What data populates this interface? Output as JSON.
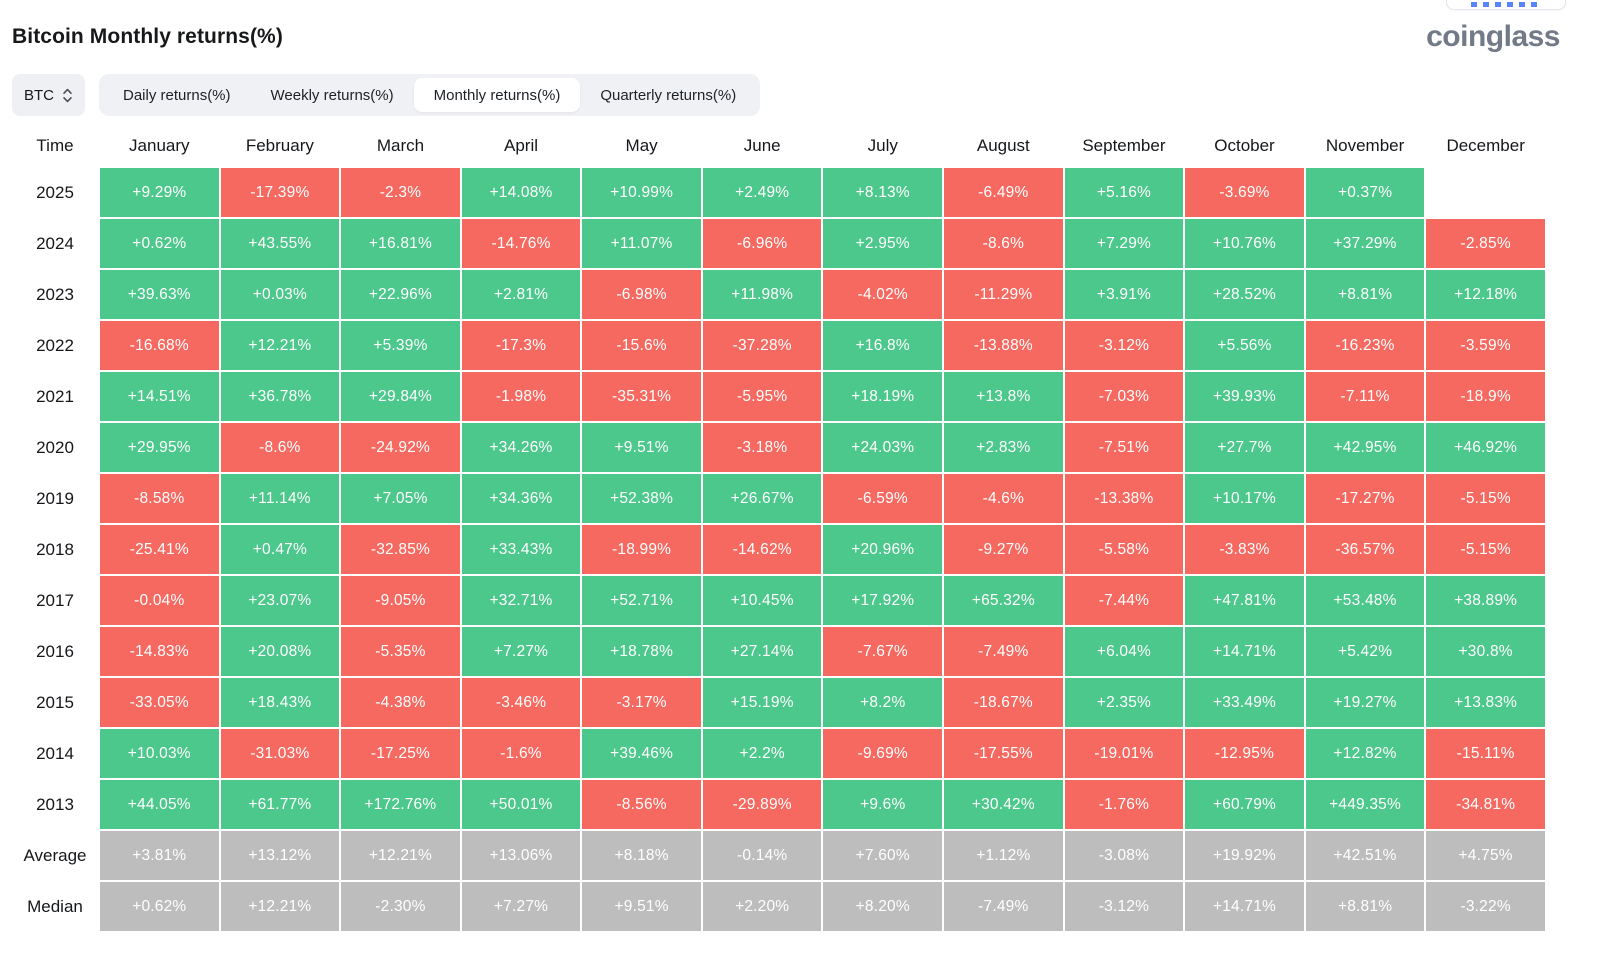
{
  "header": {
    "title": "Bitcoin Monthly returns(%)",
    "logo": "coinglass"
  },
  "controls": {
    "symbol_selector": {
      "value": "BTC",
      "icon": "updown-chevron-icon"
    },
    "tabs": [
      {
        "label": "Daily returns(%)",
        "active": false
      },
      {
        "label": "Weekly returns(%)",
        "active": false
      },
      {
        "label": "Monthly returns(%)",
        "active": true
      },
      {
        "label": "Quarterly returns(%)",
        "active": false
      }
    ]
  },
  "colors": {
    "positive": "#4dc88c",
    "negative": "#f66961",
    "neutral": "#bdbdbd"
  },
  "table": {
    "columns": [
      "Time",
      "January",
      "February",
      "March",
      "April",
      "May",
      "June",
      "July",
      "August",
      "September",
      "October",
      "November",
      "December"
    ],
    "rows": [
      {
        "label": "2025",
        "type": "year",
        "values": [
          "+9.29%",
          "-17.39%",
          "-2.3%",
          "+14.08%",
          "+10.99%",
          "+2.49%",
          "+8.13%",
          "-6.49%",
          "+5.16%",
          "-3.69%",
          "+0.37%",
          null
        ]
      },
      {
        "label": "2024",
        "type": "year",
        "values": [
          "+0.62%",
          "+43.55%",
          "+16.81%",
          "-14.76%",
          "+11.07%",
          "-6.96%",
          "+2.95%",
          "-8.6%",
          "+7.29%",
          "+10.76%",
          "+37.29%",
          "-2.85%"
        ]
      },
      {
        "label": "2023",
        "type": "year",
        "values": [
          "+39.63%",
          "+0.03%",
          "+22.96%",
          "+2.81%",
          "-6.98%",
          "+11.98%",
          "-4.02%",
          "-11.29%",
          "+3.91%",
          "+28.52%",
          "+8.81%",
          "+12.18%"
        ]
      },
      {
        "label": "2022",
        "type": "year",
        "values": [
          "-16.68%",
          "+12.21%",
          "+5.39%",
          "-17.3%",
          "-15.6%",
          "-37.28%",
          "+16.8%",
          "-13.88%",
          "-3.12%",
          "+5.56%",
          "-16.23%",
          "-3.59%"
        ]
      },
      {
        "label": "2021",
        "type": "year",
        "values": [
          "+14.51%",
          "+36.78%",
          "+29.84%",
          "-1.98%",
          "-35.31%",
          "-5.95%",
          "+18.19%",
          "+13.8%",
          "-7.03%",
          "+39.93%",
          "-7.11%",
          "-18.9%"
        ]
      },
      {
        "label": "2020",
        "type": "year",
        "values": [
          "+29.95%",
          "-8.6%",
          "-24.92%",
          "+34.26%",
          "+9.51%",
          "-3.18%",
          "+24.03%",
          "+2.83%",
          "-7.51%",
          "+27.7%",
          "+42.95%",
          "+46.92%"
        ]
      },
      {
        "label": "2019",
        "type": "year",
        "values": [
          "-8.58%",
          "+11.14%",
          "+7.05%",
          "+34.36%",
          "+52.38%",
          "+26.67%",
          "-6.59%",
          "-4.6%",
          "-13.38%",
          "+10.17%",
          "-17.27%",
          "-5.15%"
        ]
      },
      {
        "label": "2018",
        "type": "year",
        "values": [
          "-25.41%",
          "+0.47%",
          "-32.85%",
          "+33.43%",
          "-18.99%",
          "-14.62%",
          "+20.96%",
          "-9.27%",
          "-5.58%",
          "-3.83%",
          "-36.57%",
          "-5.15%"
        ]
      },
      {
        "label": "2017",
        "type": "year",
        "values": [
          "-0.04%",
          "+23.07%",
          "-9.05%",
          "+32.71%",
          "+52.71%",
          "+10.45%",
          "+17.92%",
          "+65.32%",
          "-7.44%",
          "+47.81%",
          "+53.48%",
          "+38.89%"
        ]
      },
      {
        "label": "2016",
        "type": "year",
        "values": [
          "-14.83%",
          "+20.08%",
          "-5.35%",
          "+7.27%",
          "+18.78%",
          "+27.14%",
          "-7.67%",
          "-7.49%",
          "+6.04%",
          "+14.71%",
          "+5.42%",
          "+30.8%"
        ]
      },
      {
        "label": "2015",
        "type": "year",
        "values": [
          "-33.05%",
          "+18.43%",
          "-4.38%",
          "-3.46%",
          "-3.17%",
          "+15.19%",
          "+8.2%",
          "-18.67%",
          "+2.35%",
          "+33.49%",
          "+19.27%",
          "+13.83%"
        ]
      },
      {
        "label": "2014",
        "type": "year",
        "values": [
          "+10.03%",
          "-31.03%",
          "-17.25%",
          "-1.6%",
          "+39.46%",
          "+2.2%",
          "-9.69%",
          "-17.55%",
          "-19.01%",
          "-12.95%",
          "+12.82%",
          "-15.11%"
        ]
      },
      {
        "label": "2013",
        "type": "year",
        "values": [
          "+44.05%",
          "+61.77%",
          "+172.76%",
          "+50.01%",
          "-8.56%",
          "-29.89%",
          "+9.6%",
          "+30.42%",
          "-1.76%",
          "+60.79%",
          "+449.35%",
          "-34.81%"
        ]
      },
      {
        "label": "Average",
        "type": "summary",
        "values": [
          "+3.81%",
          "+13.12%",
          "+12.21%",
          "+13.06%",
          "+8.18%",
          "-0.14%",
          "+7.60%",
          "+1.12%",
          "-3.08%",
          "+19.92%",
          "+42.51%",
          "+4.75%"
        ]
      },
      {
        "label": "Median",
        "type": "summary",
        "values": [
          "+0.62%",
          "+12.21%",
          "-2.30%",
          "+7.27%",
          "+9.51%",
          "+2.20%",
          "+8.20%",
          "-7.49%",
          "-3.12%",
          "+14.71%",
          "+8.81%",
          "-3.22%"
        ]
      }
    ]
  }
}
